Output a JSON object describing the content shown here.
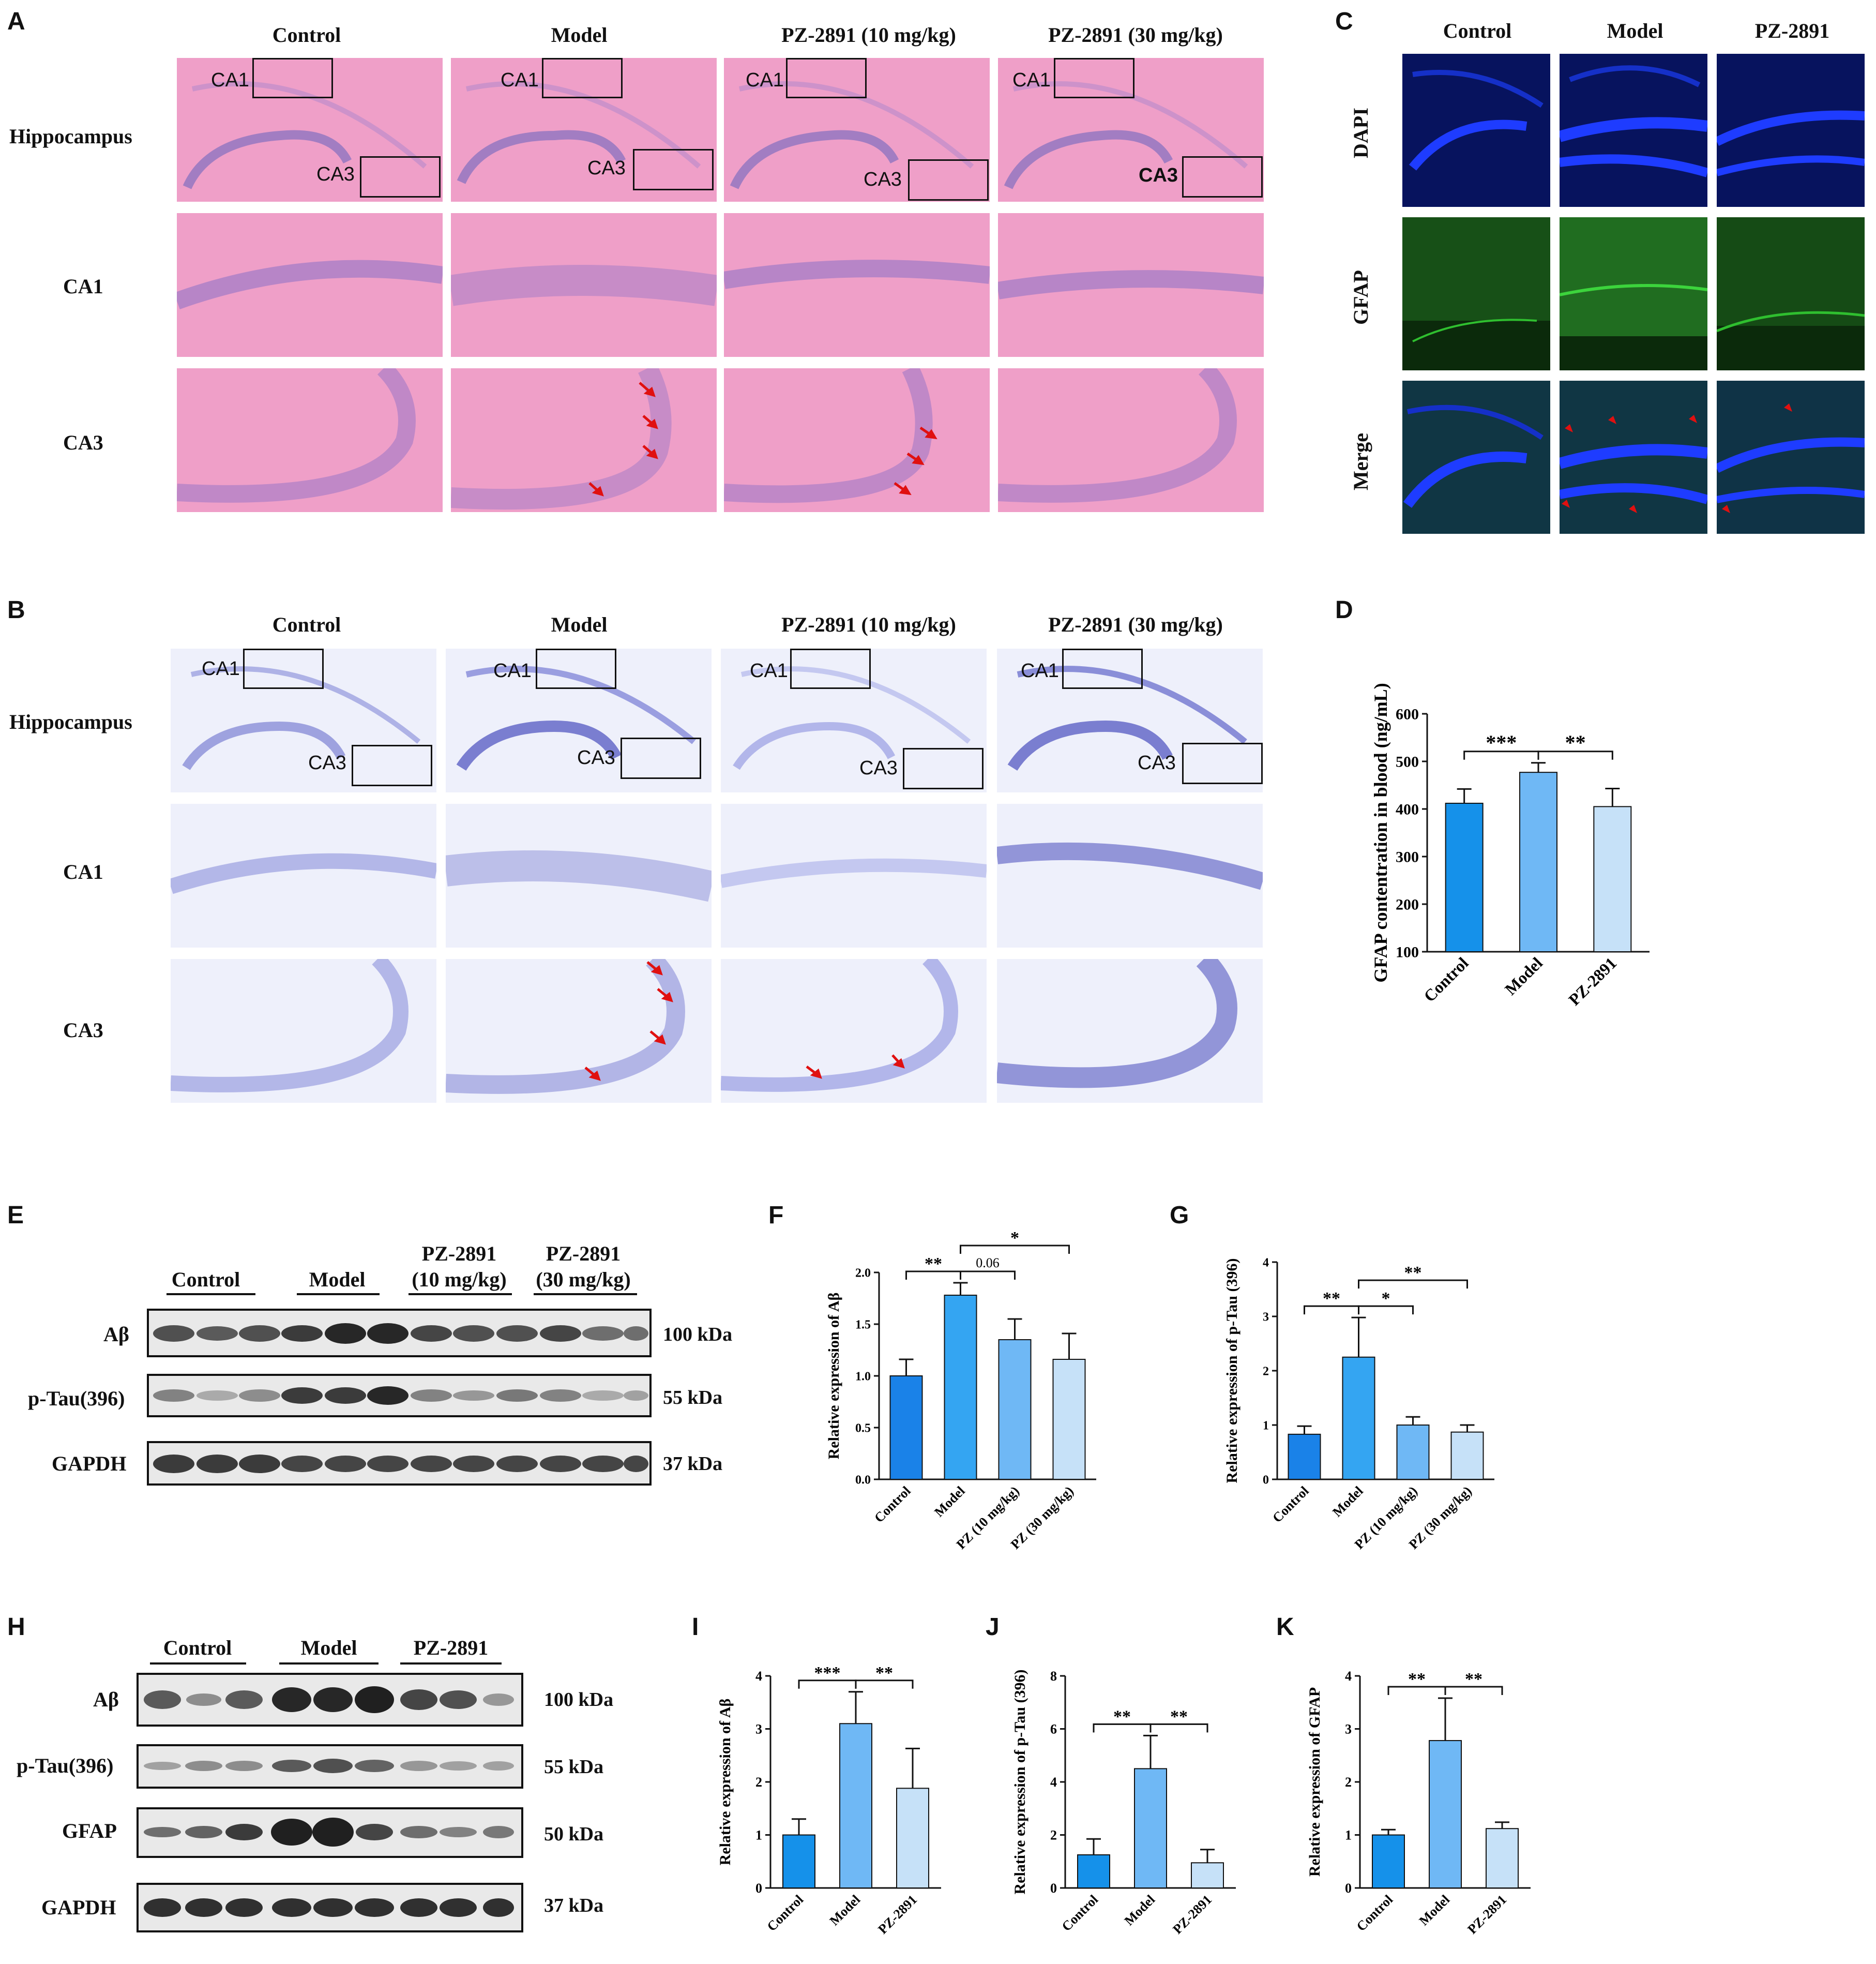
{
  "panels": {
    "A": "A",
    "B": "B",
    "C": "C",
    "D": "D",
    "E": "E",
    "F": "F",
    "G": "G",
    "H": "H",
    "I": "I",
    "J": "J",
    "K": "K"
  },
  "histology_groups": [
    "Control",
    "Model",
    "PZ-2891 (10 mg/kg)",
    "PZ-2891 (30 mg/kg)"
  ],
  "histology_rows": [
    "Hippocampus",
    "CA1",
    "CA3"
  ],
  "regions": {
    "ca1": "CA1",
    "ca3": "CA3"
  },
  "fluor_groups": [
    "Control",
    "Model",
    "PZ-2891"
  ],
  "fluor_rows": [
    "DAPI",
    "GFAP",
    "Merge"
  ],
  "colors": {
    "he_pink": "#ef9fc8",
    "nissl": "#eef0fb",
    "dapi_blue": "#1528c8",
    "gfap_green": "#28b428",
    "arrow": "#e01010",
    "bar1": "#1591ea",
    "bar2": "#6fb8f5",
    "bar3": "#c6e1f8"
  },
  "blot_E": {
    "groups": [
      "Control",
      "Model",
      "PZ-2891",
      "(10 mg/kg)",
      "PZ-2891",
      "(30 mg/kg)"
    ],
    "rows": [
      {
        "name": "Aβ",
        "kda": "100 kDa"
      },
      {
        "name": "p-Tau(396)",
        "kda": "55 kDa"
      },
      {
        "name": "GAPDH",
        "kda": "37 kDa"
      }
    ]
  },
  "blot_H": {
    "groups": [
      "Control",
      "Model",
      "PZ-2891"
    ],
    "rows": [
      {
        "name": "Aβ",
        "kda": "100 kDa"
      },
      {
        "name": "p-Tau(396)",
        "kda": "55 kDa"
      },
      {
        "name": "GFAP",
        "kda": "50 kDa"
      },
      {
        "name": "GAPDH",
        "kda": "37 kDa"
      }
    ]
  },
  "chart_data": [
    {
      "panel": "D",
      "type": "bar",
      "categories": [
        "Control",
        "Model",
        "PZ-2891"
      ],
      "values": [
        412,
        477,
        405
      ],
      "errors": [
        30,
        20,
        38
      ],
      "ylabel": "GFAP contentration in blood (ng/mL)",
      "ylim": [
        100,
        600
      ],
      "yticks": [
        100,
        200,
        300,
        400,
        500,
        600
      ],
      "significance": [
        {
          "from": 0,
          "to": 1,
          "label": "***"
        },
        {
          "from": 1,
          "to": 2,
          "label": "**"
        }
      ]
    },
    {
      "panel": "F",
      "type": "bar",
      "categories": [
        "Control",
        "Model",
        "PZ (10 mg/kg)",
        "PZ (30 mg/kg)"
      ],
      "values": [
        1.0,
        1.78,
        1.35,
        1.16
      ],
      "errors": [
        0.16,
        0.12,
        0.2,
        0.25
      ],
      "ylabel": "Relative expression of Aβ",
      "ylim": [
        0,
        2.0
      ],
      "yticks": [
        "0.0",
        "0.5",
        "1.0",
        "1.5",
        "2.0"
      ],
      "significance": [
        {
          "from": 0,
          "to": 1,
          "label": "**"
        },
        {
          "from": 1,
          "to": 2,
          "label": "0.06"
        },
        {
          "from": 1,
          "to": 3,
          "label": "*"
        }
      ]
    },
    {
      "panel": "G",
      "type": "bar",
      "categories": [
        "Control",
        "Model",
        "PZ (10 mg/kg)",
        "PZ (30 mg/kg)"
      ],
      "values": [
        0.83,
        2.25,
        1.0,
        0.87
      ],
      "errors": [
        0.15,
        0.73,
        0.15,
        0.13
      ],
      "ylabel": "Relative expression of p-Tau (396)",
      "ylim": [
        0,
        4
      ],
      "yticks": [
        "0",
        "1",
        "2",
        "3",
        "4"
      ],
      "significance": [
        {
          "from": 0,
          "to": 1,
          "label": "**"
        },
        {
          "from": 1,
          "to": 2,
          "label": "*"
        },
        {
          "from": 1,
          "to": 3,
          "label": "**"
        }
      ]
    },
    {
      "panel": "I",
      "type": "bar",
      "categories": [
        "Control",
        "Model",
        "PZ-2891"
      ],
      "values": [
        1.0,
        3.1,
        1.88
      ],
      "errors": [
        0.3,
        0.6,
        0.75
      ],
      "ylabel": "Relative expression of Aβ",
      "ylim": [
        0,
        4
      ],
      "yticks": [
        "0",
        "1",
        "2",
        "3",
        "4"
      ],
      "significance": [
        {
          "from": 0,
          "to": 1,
          "label": "***"
        },
        {
          "from": 1,
          "to": 2,
          "label": "**"
        }
      ]
    },
    {
      "panel": "J",
      "type": "bar",
      "categories": [
        "Control",
        "Model",
        "PZ-2891"
      ],
      "values": [
        1.25,
        4.5,
        0.95
      ],
      "errors": [
        0.6,
        1.25,
        0.5
      ],
      "ylabel": "Relative expression of p-Tau (396)",
      "ylim": [
        0,
        8
      ],
      "yticks": [
        "0",
        "2",
        "4",
        "6",
        "8"
      ],
      "significance": [
        {
          "from": 0,
          "to": 1,
          "label": "**"
        },
        {
          "from": 1,
          "to": 2,
          "label": "**"
        }
      ]
    },
    {
      "panel": "K",
      "type": "bar",
      "categories": [
        "Control",
        "Model",
        "PZ-2891"
      ],
      "values": [
        1.0,
        2.78,
        1.12
      ],
      "errors": [
        0.1,
        0.8,
        0.12
      ],
      "ylabel": "Relative expression of GFAP",
      "ylim": [
        0,
        4
      ],
      "yticks": [
        "0",
        "1",
        "2",
        "3",
        "4"
      ],
      "significance": [
        {
          "from": 0,
          "to": 1,
          "label": "**"
        },
        {
          "from": 1,
          "to": 2,
          "label": "**"
        }
      ]
    }
  ]
}
